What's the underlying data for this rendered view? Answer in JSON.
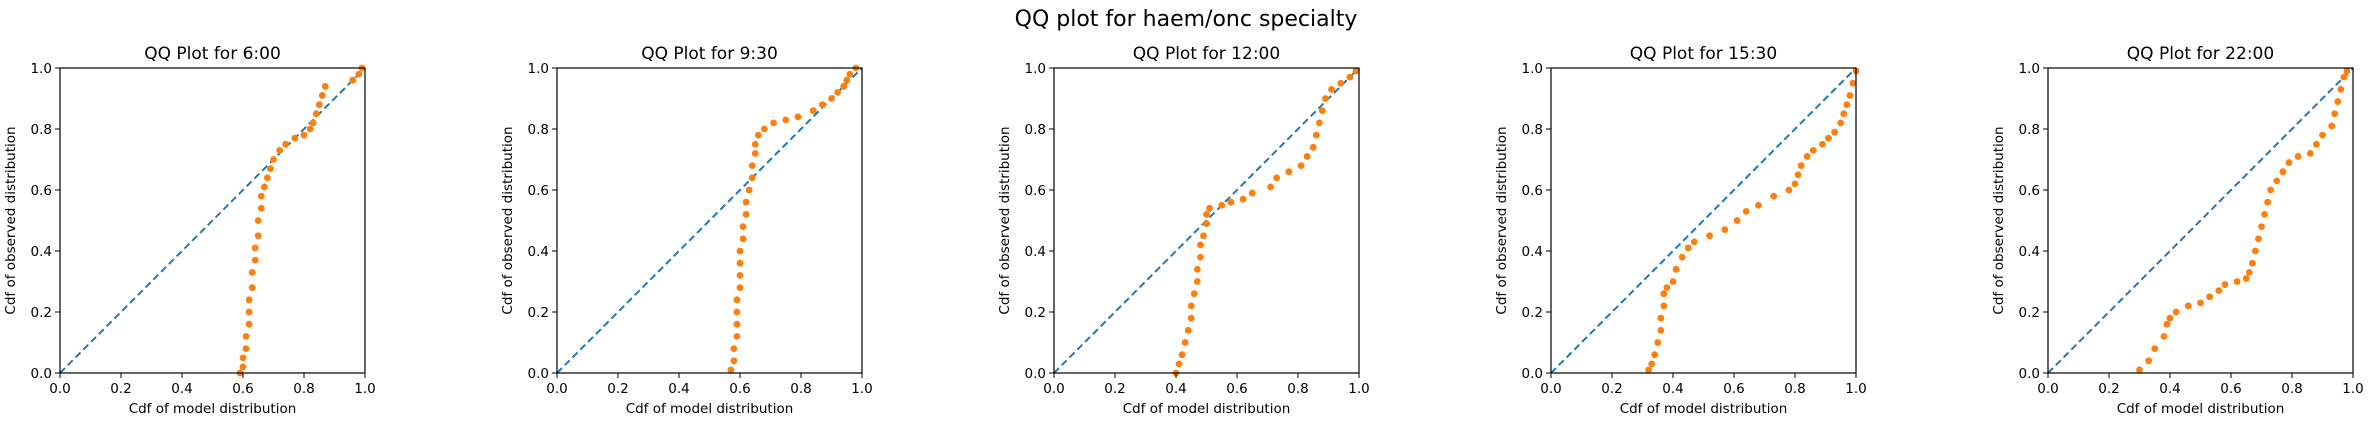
{
  "figure": {
    "title": "QQ plot for haem/onc specialty"
  },
  "style": {
    "reference_color": "#1f77b4",
    "points_color": "#ff7f0e"
  },
  "chart_data": [
    {
      "type": "scatter",
      "title": "QQ Plot for 6:00",
      "xlabel": "Cdf of model distribution",
      "ylabel": "Cdf of observed distribution",
      "xlim": [
        0,
        1
      ],
      "ylim": [
        0,
        1
      ],
      "xticks": [
        "0.0",
        "0.2",
        "0.4",
        "0.6",
        "0.8",
        "1.0"
      ],
      "yticks": [
        "0.0",
        "0.2",
        "0.4",
        "0.6",
        "0.8",
        "1.0"
      ],
      "reference_line": {
        "from": [
          0,
          0
        ],
        "to": [
          1,
          1
        ],
        "style": "dashed"
      },
      "points": [
        [
          0.59,
          0.0
        ],
        [
          0.6,
          0.02
        ],
        [
          0.6,
          0.05
        ],
        [
          0.61,
          0.08
        ],
        [
          0.61,
          0.12
        ],
        [
          0.62,
          0.16
        ],
        [
          0.62,
          0.2
        ],
        [
          0.62,
          0.24
        ],
        [
          0.63,
          0.28
        ],
        [
          0.63,
          0.33
        ],
        [
          0.64,
          0.37
        ],
        [
          0.64,
          0.41
        ],
        [
          0.65,
          0.45
        ],
        [
          0.65,
          0.5
        ],
        [
          0.66,
          0.54
        ],
        [
          0.66,
          0.58
        ],
        [
          0.67,
          0.61
        ],
        [
          0.68,
          0.64
        ],
        [
          0.69,
          0.67
        ],
        [
          0.7,
          0.7
        ],
        [
          0.72,
          0.73
        ],
        [
          0.74,
          0.75
        ],
        [
          0.77,
          0.77
        ],
        [
          0.8,
          0.78
        ],
        [
          0.82,
          0.8
        ],
        [
          0.83,
          0.82
        ],
        [
          0.84,
          0.85
        ],
        [
          0.85,
          0.88
        ],
        [
          0.86,
          0.91
        ],
        [
          0.87,
          0.94
        ],
        [
          0.96,
          0.96
        ],
        [
          0.98,
          0.98
        ],
        [
          0.99,
          1.0
        ]
      ]
    },
    {
      "type": "scatter",
      "title": "QQ Plot for 9:30",
      "xlabel": "Cdf of model distribution",
      "ylabel": "Cdf of observed distribution",
      "xlim": [
        0,
        1
      ],
      "ylim": [
        0,
        1
      ],
      "xticks": [
        "0.0",
        "0.2",
        "0.4",
        "0.6",
        "0.8",
        "1.0"
      ],
      "yticks": [
        "0.0",
        "0.2",
        "0.4",
        "0.6",
        "0.8",
        "1.0"
      ],
      "reference_line": {
        "from": [
          0,
          0
        ],
        "to": [
          1,
          1
        ],
        "style": "dashed"
      },
      "points": [
        [
          0.57,
          0.01
        ],
        [
          0.58,
          0.04
        ],
        [
          0.58,
          0.08
        ],
        [
          0.59,
          0.12
        ],
        [
          0.59,
          0.16
        ],
        [
          0.59,
          0.2
        ],
        [
          0.59,
          0.24
        ],
        [
          0.6,
          0.28
        ],
        [
          0.6,
          0.32
        ],
        [
          0.6,
          0.36
        ],
        [
          0.6,
          0.4
        ],
        [
          0.61,
          0.44
        ],
        [
          0.61,
          0.48
        ],
        [
          0.62,
          0.52
        ],
        [
          0.62,
          0.56
        ],
        [
          0.63,
          0.6
        ],
        [
          0.64,
          0.64
        ],
        [
          0.64,
          0.68
        ],
        [
          0.65,
          0.72
        ],
        [
          0.65,
          0.75
        ],
        [
          0.66,
          0.78
        ],
        [
          0.68,
          0.8
        ],
        [
          0.71,
          0.82
        ],
        [
          0.75,
          0.83
        ],
        [
          0.79,
          0.84
        ],
        [
          0.84,
          0.86
        ],
        [
          0.87,
          0.88
        ],
        [
          0.9,
          0.9
        ],
        [
          0.92,
          0.92
        ],
        [
          0.94,
          0.94
        ],
        [
          0.95,
          0.96
        ],
        [
          0.96,
          0.98
        ],
        [
          0.98,
          1.0
        ]
      ]
    },
    {
      "type": "scatter",
      "title": "QQ Plot for 12:00",
      "xlabel": "Cdf of model distribution",
      "ylabel": "Cdf of observed distribution",
      "xlim": [
        0,
        1
      ],
      "ylim": [
        0,
        1
      ],
      "xticks": [
        "0.0",
        "0.2",
        "0.4",
        "0.6",
        "0.8",
        "1.0"
      ],
      "yticks": [
        "0.0",
        "0.2",
        "0.4",
        "0.6",
        "0.8",
        "1.0"
      ],
      "reference_line": {
        "from": [
          0,
          0
        ],
        "to": [
          1,
          1
        ],
        "style": "dashed"
      },
      "points": [
        [
          0.4,
          0.0
        ],
        [
          0.41,
          0.03
        ],
        [
          0.42,
          0.06
        ],
        [
          0.43,
          0.1
        ],
        [
          0.44,
          0.14
        ],
        [
          0.45,
          0.18
        ],
        [
          0.45,
          0.22
        ],
        [
          0.46,
          0.26
        ],
        [
          0.47,
          0.3
        ],
        [
          0.47,
          0.34
        ],
        [
          0.48,
          0.38
        ],
        [
          0.48,
          0.42
        ],
        [
          0.49,
          0.45
        ],
        [
          0.5,
          0.49
        ],
        [
          0.5,
          0.52
        ],
        [
          0.51,
          0.54
        ],
        [
          0.55,
          0.55
        ],
        [
          0.58,
          0.56
        ],
        [
          0.62,
          0.57
        ],
        [
          0.65,
          0.59
        ],
        [
          0.71,
          0.61
        ],
        [
          0.73,
          0.64
        ],
        [
          0.77,
          0.66
        ],
        [
          0.81,
          0.68
        ],
        [
          0.83,
          0.71
        ],
        [
          0.85,
          0.74
        ],
        [
          0.86,
          0.78
        ],
        [
          0.87,
          0.82
        ],
        [
          0.88,
          0.86
        ],
        [
          0.89,
          0.9
        ],
        [
          0.91,
          0.93
        ],
        [
          0.94,
          0.95
        ],
        [
          0.97,
          0.97
        ],
        [
          0.99,
          0.99
        ]
      ]
    },
    {
      "type": "scatter",
      "title": "QQ Plot for 15:30",
      "xlabel": "Cdf of model distribution",
      "ylabel": "Cdf of observed distribution",
      "xlim": [
        0,
        1
      ],
      "ylim": [
        0,
        1
      ],
      "xticks": [
        "0.0",
        "0.2",
        "0.4",
        "0.6",
        "0.8",
        "1.0"
      ],
      "yticks": [
        "0.0",
        "0.2",
        "0.4",
        "0.6",
        "0.8",
        "1.0"
      ],
      "reference_line": {
        "from": [
          0,
          0
        ],
        "to": [
          1,
          1
        ],
        "style": "dashed"
      },
      "points": [
        [
          0.32,
          0.01
        ],
        [
          0.33,
          0.03
        ],
        [
          0.34,
          0.06
        ],
        [
          0.35,
          0.1
        ],
        [
          0.36,
          0.14
        ],
        [
          0.36,
          0.18
        ],
        [
          0.37,
          0.22
        ],
        [
          0.37,
          0.26
        ],
        [
          0.38,
          0.28
        ],
        [
          0.4,
          0.3
        ],
        [
          0.41,
          0.34
        ],
        [
          0.43,
          0.38
        ],
        [
          0.45,
          0.41
        ],
        [
          0.47,
          0.43
        ],
        [
          0.52,
          0.45
        ],
        [
          0.57,
          0.47
        ],
        [
          0.61,
          0.5
        ],
        [
          0.64,
          0.53
        ],
        [
          0.68,
          0.55
        ],
        [
          0.73,
          0.58
        ],
        [
          0.78,
          0.6
        ],
        [
          0.8,
          0.62
        ],
        [
          0.81,
          0.65
        ],
        [
          0.82,
          0.68
        ],
        [
          0.84,
          0.71
        ],
        [
          0.86,
          0.73
        ],
        [
          0.89,
          0.75
        ],
        [
          0.91,
          0.77
        ],
        [
          0.93,
          0.79
        ],
        [
          0.95,
          0.82
        ],
        [
          0.96,
          0.85
        ],
        [
          0.97,
          0.88
        ],
        [
          0.98,
          0.91
        ],
        [
          0.99,
          0.95
        ],
        [
          1.0,
          0.99
        ]
      ]
    },
    {
      "type": "scatter",
      "title": "QQ Plot for 22:00",
      "xlabel": "Cdf of model distribution",
      "ylabel": "Cdf of observed distribution",
      "xlim": [
        0,
        1
      ],
      "ylim": [
        0,
        1
      ],
      "xticks": [
        "0.0",
        "0.2",
        "0.4",
        "0.6",
        "0.8",
        "1.0"
      ],
      "yticks": [
        "0.0",
        "0.2",
        "0.4",
        "0.6",
        "0.8",
        "1.0"
      ],
      "reference_line": {
        "from": [
          0,
          0
        ],
        "to": [
          1,
          1
        ],
        "style": "dashed"
      },
      "points": [
        [
          0.3,
          0.01
        ],
        [
          0.33,
          0.04
        ],
        [
          0.35,
          0.08
        ],
        [
          0.38,
          0.12
        ],
        [
          0.39,
          0.16
        ],
        [
          0.4,
          0.18
        ],
        [
          0.42,
          0.2
        ],
        [
          0.46,
          0.22
        ],
        [
          0.5,
          0.23
        ],
        [
          0.53,
          0.25
        ],
        [
          0.56,
          0.27
        ],
        [
          0.58,
          0.29
        ],
        [
          0.62,
          0.3
        ],
        [
          0.65,
          0.31
        ],
        [
          0.66,
          0.33
        ],
        [
          0.67,
          0.36
        ],
        [
          0.68,
          0.4
        ],
        [
          0.69,
          0.44
        ],
        [
          0.7,
          0.48
        ],
        [
          0.71,
          0.52
        ],
        [
          0.72,
          0.56
        ],
        [
          0.73,
          0.6
        ],
        [
          0.75,
          0.63
        ],
        [
          0.77,
          0.66
        ],
        [
          0.79,
          0.69
        ],
        [
          0.82,
          0.71
        ],
        [
          0.86,
          0.72
        ],
        [
          0.88,
          0.75
        ],
        [
          0.9,
          0.78
        ],
        [
          0.93,
          0.81
        ],
        [
          0.94,
          0.85
        ],
        [
          0.95,
          0.89
        ],
        [
          0.96,
          0.93
        ],
        [
          0.97,
          0.97
        ],
        [
          0.98,
          0.99
        ]
      ]
    }
  ]
}
